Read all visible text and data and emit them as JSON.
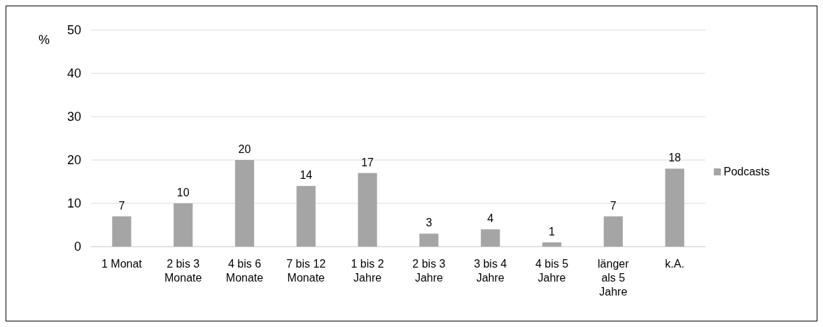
{
  "chart_data": {
    "type": "bar",
    "ylabel": "%",
    "categories": [
      "1 Monat",
      "2 bis 3 Monate",
      "4 bis 6 Monate",
      "7 bis 12 Monate",
      "1 bis 2 Jahre",
      "2 bis 3 Jahre",
      "3 bis 4 Jahre",
      "4 bis 5 Jahre",
      "länger als 5 Jahre",
      "k.A."
    ],
    "series": [
      {
        "name": "Podcasts",
        "color": "#a5a5a5",
        "values": [
          7,
          10,
          20,
          14,
          17,
          3,
          4,
          1,
          7,
          18
        ]
      }
    ],
    "ylim": [
      0,
      50
    ],
    "yticks": [
      0,
      10,
      20,
      30,
      40,
      50
    ],
    "grid": "y",
    "legend": "right",
    "data_labels": true
  }
}
